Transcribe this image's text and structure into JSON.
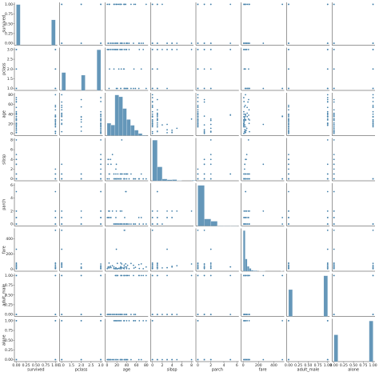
{
  "chart_data": {
    "type": "pairplot",
    "color": "#3274a1",
    "variables": [
      {
        "name": "survived",
        "lim": [
          -0.05,
          1.05
        ],
        "ticks": [
          {
            "value": 0,
            "label": "0.00"
          },
          {
            "value": 0.25,
            "label": "0.25"
          },
          {
            "value": 0.5,
            "label": "0.50"
          },
          {
            "value": 0.75,
            "label": "0.75"
          },
          {
            "value": 1,
            "label": "1.00"
          }
        ],
        "bins": [
          0,
          0.1,
          0.2,
          0.3,
          0.4,
          0.5,
          0.6,
          0.7,
          0.8,
          0.9,
          1
        ],
        "counts": [
          549,
          0,
          0,
          0,
          0,
          0,
          0,
          0,
          0,
          342
        ]
      },
      {
        "name": "pclass",
        "lim": [
          0.9,
          3.1
        ],
        "ticks": [
          {
            "value": 1,
            "label": "1.0"
          },
          1.5,
          {
            "value": 2,
            "label": "2.0"
          },
          2.5,
          {
            "value": 3,
            "label": "3.0"
          }
        ],
        "bins": [
          1,
          1.2,
          1.4,
          1.6,
          1.8,
          2,
          2.2,
          2.4,
          2.6,
          2.8,
          3
        ],
        "counts": [
          216,
          0,
          0,
          0,
          0,
          184,
          0,
          0,
          0,
          491
        ]
      },
      {
        "name": "age",
        "lim": [
          -4,
          84
        ],
        "ticks": [
          0,
          20,
          40,
          60,
          80
        ],
        "bins": [
          0,
          8,
          16,
          24,
          32,
          40,
          48,
          56,
          64,
          72,
          80
        ],
        "counts": [
          54,
          46,
          177,
          169,
          118,
          70,
          45,
          24,
          9,
          2
        ]
      },
      {
        "name": "sibsp",
        "lim": [
          -0.4,
          8.4
        ],
        "ticks": [
          0,
          2,
          4,
          6,
          8
        ],
        "bins": [
          0,
          1,
          2,
          3,
          4,
          5,
          6,
          7,
          8,
          9
        ],
        "counts": [
          608,
          209,
          28,
          16,
          18,
          5,
          0,
          0,
          7
        ]
      },
      {
        "name": "parch",
        "lim": [
          -0.3,
          6.3
        ],
        "ticks": [
          0,
          2,
          4,
          6
        ],
        "bins": [
          0,
          1,
          2,
          3,
          4,
          5,
          6,
          7
        ],
        "counts": [
          678,
          118,
          80,
          5,
          4,
          5,
          1
        ]
      },
      {
        "name": "fare",
        "lim": [
          -25,
          537
        ],
        "ticks": [
          0,
          200,
          400
        ],
        "bins": [
          0,
          26,
          52,
          78,
          104,
          130,
          156,
          182,
          208,
          234,
          260,
          286,
          312,
          338,
          364,
          390,
          416,
          442,
          468,
          494,
          520
        ],
        "counts": [
          562,
          170,
          67,
          39,
          15,
          8,
          9,
          0,
          2,
          2,
          4,
          0,
          0,
          0,
          0,
          0,
          0,
          0,
          0,
          3
        ]
      },
      {
        "name": "adult_male",
        "lim": [
          -0.05,
          1.05
        ],
        "ticks": [
          {
            "value": 0,
            "label": "0.00"
          },
          {
            "value": 0.25,
            "label": "0.25"
          },
          {
            "value": 0.5,
            "label": "0.50"
          },
          {
            "value": 0.75,
            "label": "0.75"
          },
          {
            "value": 1,
            "label": "1.00"
          }
        ],
        "bins": [
          0,
          0.1,
          0.2,
          0.3,
          0.4,
          0.5,
          0.6,
          0.7,
          0.8,
          0.9,
          1
        ],
        "counts": [
          354,
          0,
          0,
          0,
          0,
          0,
          0,
          0,
          0,
          537
        ]
      },
      {
        "name": "alone",
        "lim": [
          -0.05,
          1.05
        ],
        "ticks": [
          {
            "value": 0,
            "label": "0.00"
          },
          {
            "value": 0.25,
            "label": "0.25"
          },
          {
            "value": 0.5,
            "label": "0.50"
          },
          {
            "value": 0.75,
            "label": "0.75"
          },
          {
            "value": 1,
            "label": "1.00"
          }
        ],
        "bins": [
          0,
          0.1,
          0.2,
          0.3,
          0.4,
          0.5,
          0.6,
          0.7,
          0.8,
          0.9,
          1
        ],
        "counts": [
          354,
          0,
          0,
          0,
          0,
          0,
          0,
          0,
          0,
          537
        ]
      }
    ],
    "points": [
      [
        0,
        3,
        22,
        1,
        0,
        7.25,
        1,
        0
      ],
      [
        1,
        1,
        38,
        1,
        0,
        71.3,
        0,
        0
      ],
      [
        1,
        3,
        26,
        0,
        0,
        7.9,
        0,
        1
      ],
      [
        1,
        1,
        35,
        1,
        0,
        53.1,
        0,
        0
      ],
      [
        0,
        3,
        35,
        0,
        0,
        8.05,
        1,
        1
      ],
      [
        0,
        1,
        54,
        0,
        0,
        51.9,
        1,
        1
      ],
      [
        0,
        3,
        2,
        3,
        1,
        21.1,
        0,
        0
      ],
      [
        1,
        3,
        27,
        0,
        2,
        11.1,
        0,
        0
      ],
      [
        1,
        2,
        14,
        1,
        0,
        30.1,
        0,
        0
      ],
      [
        1,
        3,
        4,
        1,
        1,
        16.7,
        0,
        0
      ],
      [
        1,
        1,
        58,
        0,
        0,
        26.6,
        0,
        1
      ],
      [
        0,
        3,
        20,
        0,
        0,
        8.05,
        1,
        1
      ],
      [
        0,
        3,
        39,
        1,
        5,
        31.3,
        1,
        0
      ],
      [
        0,
        3,
        14,
        0,
        0,
        7.85,
        0,
        1
      ],
      [
        1,
        2,
        55,
        0,
        0,
        16,
        0,
        1
      ],
      [
        0,
        3,
        2,
        4,
        1,
        29.1,
        0,
        0
      ],
      [
        0,
        3,
        31,
        1,
        0,
        18,
        0,
        0
      ],
      [
        0,
        2,
        35,
        0,
        0,
        26,
        1,
        1
      ],
      [
        1,
        2,
        34,
        0,
        0,
        13,
        1,
        1
      ],
      [
        1,
        3,
        15,
        0,
        0,
        8.03,
        0,
        1
      ],
      [
        1,
        1,
        28,
        0,
        0,
        35.5,
        1,
        1
      ],
      [
        0,
        3,
        8,
        3,
        1,
        21.1,
        0,
        0
      ],
      [
        1,
        3,
        38,
        1,
        5,
        31.4,
        0,
        0
      ],
      [
        0,
        1,
        19,
        3,
        2,
        263,
        1,
        0
      ],
      [
        0,
        1,
        40,
        0,
        0,
        27.7,
        1,
        1
      ],
      [
        0,
        3,
        66,
        0,
        0,
        10.5,
        1,
        1
      ],
      [
        0,
        1,
        28,
        1,
        0,
        82.2,
        1,
        0
      ],
      [
        0,
        1,
        42,
        1,
        0,
        52,
        1,
        0
      ],
      [
        0,
        3,
        21,
        0,
        0,
        8.05,
        1,
        1
      ],
      [
        1,
        3,
        18,
        2,
        0,
        18,
        0,
        0
      ],
      [
        1,
        3,
        14,
        1,
        0,
        11.2,
        0,
        0
      ],
      [
        0,
        3,
        40,
        1,
        0,
        9.5,
        0,
        0
      ],
      [
        0,
        3,
        27,
        1,
        0,
        21,
        0,
        0
      ],
      [
        0,
        3,
        3,
        4,
        2,
        31.4,
        0,
        0
      ],
      [
        1,
        3,
        19,
        0,
        0,
        7.9,
        0,
        1
      ],
      [
        0,
        3,
        18,
        1,
        1,
        20.2,
        1,
        0
      ],
      [
        0,
        3,
        7,
        4,
        1,
        39.7,
        0,
        0
      ],
      [
        0,
        3,
        21,
        0,
        0,
        7.8,
        1,
        1
      ],
      [
        1,
        1,
        49,
        1,
        0,
        76.7,
        0,
        0
      ],
      [
        1,
        2,
        29,
        1,
        0,
        26,
        0,
        0
      ],
      [
        0,
        1,
        65,
        0,
        1,
        61.9,
        1,
        0
      ],
      [
        1,
        1,
        21,
        0,
        0,
        77.9,
        0,
        1
      ],
      [
        0,
        3,
        28.5,
        0,
        0,
        7.2,
        1,
        1
      ],
      [
        1,
        2,
        5,
        1,
        2,
        27.75,
        0,
        0
      ],
      [
        0,
        3,
        11,
        5,
        2,
        46.9,
        0,
        0
      ],
      [
        0,
        3,
        45,
        0,
        0,
        8.05,
        1,
        1
      ],
      [
        1,
        1,
        4,
        0,
        2,
        81.9,
        0,
        0
      ],
      [
        0,
        3,
        17,
        0,
        0,
        7.2,
        1,
        1
      ],
      [
        1,
        1,
        35,
        0,
        0,
        512.3,
        1,
        1
      ],
      [
        0,
        3,
        74,
        0,
        0,
        7.78,
        1,
        1
      ],
      [
        1,
        3,
        0.42,
        0,
        1,
        8.5,
        0,
        0
      ],
      [
        0,
        3,
        30,
        8,
        2,
        69.6,
        1,
        0
      ],
      [
        1,
        1,
        80,
        0,
        0,
        30,
        1,
        1
      ],
      [
        0,
        2,
        70,
        1,
        1,
        71,
        1,
        0
      ],
      [
        1,
        1,
        36,
        0,
        1,
        512.3,
        1,
        0
      ],
      [
        1,
        2,
        24,
        0,
        0,
        13,
        0,
        1
      ]
    ]
  }
}
